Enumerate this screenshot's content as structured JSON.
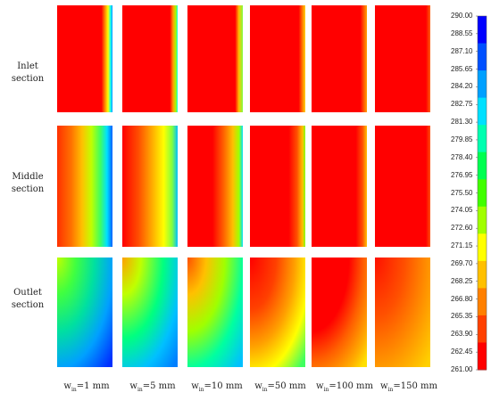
{
  "rows": [
    {
      "label_line1": "Inlet",
      "label_line2": "section"
    },
    {
      "label_line1": "Middle",
      "label_line2": "section"
    },
    {
      "label_line1": "Outlet",
      "label_line2": "section"
    }
  ],
  "columns": [
    {
      "symbol": "w",
      "sub": "in",
      "value": "=1 mm"
    },
    {
      "symbol": "w",
      "sub": "in",
      "value": "=5 mm"
    },
    {
      "symbol": "w",
      "sub": "in",
      "value": "=10 mm"
    },
    {
      "symbol": "w",
      "sub": "in",
      "value": "=50 mm"
    },
    {
      "symbol": "w",
      "sub": "in",
      "value": "=100 mm"
    },
    {
      "symbol": "w",
      "sub": "in",
      "value": "=150 mm"
    }
  ],
  "colorbar": {
    "ticks": [
      "290.00",
      "288.55",
      "287.10",
      "285.65",
      "284.20",
      "282.75",
      "281.30",
      "279.85",
      "278.40",
      "276.95",
      "275.50",
      "274.05",
      "272.60",
      "271.15",
      "269.70",
      "268.25",
      "266.80",
      "265.35",
      "263.90",
      "262.45",
      "261.00"
    ],
    "colors_top_to_bottom": [
      "#0000ff",
      "#0050ff",
      "#00a0ff",
      "#00e0ff",
      "#00ffb0",
      "#00ff50",
      "#40ff00",
      "#a0ff00",
      "#ffff00",
      "#ffc000",
      "#ff8000",
      "#ff4000",
      "#ff0000"
    ]
  }
}
